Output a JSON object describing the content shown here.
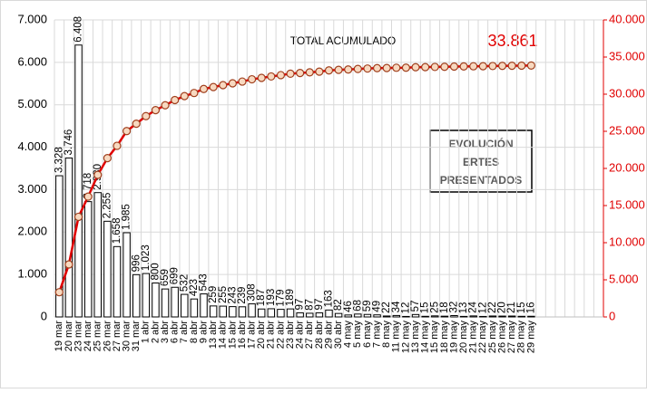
{
  "chart_data": {
    "type": "bar",
    "title": "TOTAL ACUMULADO",
    "total_label": "33.861",
    "box_text": [
      "EVOLUCIÓN",
      "ERTES",
      "PRESENTADOS"
    ],
    "categories": [
      "19 mar",
      "20 mar",
      "23 mar",
      "24 mar",
      "25 mar",
      "26 mar",
      "27 mar",
      "30 mar",
      "31 mar",
      "1 abr",
      "2 abr",
      "3 abr",
      "6 abr",
      "7 abr",
      "8 abr",
      "9 abr",
      "13 abr",
      "14 abr",
      "15 abr",
      "16 abr",
      "17 abr",
      "20 abr",
      "21 abr",
      "22 abr",
      "23 abr",
      "24 abr",
      "27 abr",
      "28 abr",
      "29 abr",
      "30 abr",
      "4 may",
      "5 may",
      "6 may",
      "7 may",
      "8 may",
      "11 may",
      "12 may",
      "13 may",
      "14 may",
      "15 may",
      "18 may",
      "19 may",
      "20 may",
      "21 may",
      "22 may",
      "25 may",
      "26 may",
      "27 may",
      "28 may",
      "29 may"
    ],
    "series": [
      {
        "type": "bar",
        "color": "#ffffff",
        "values": [
          3328,
          3746,
          6408,
          2718,
          2930,
          2255,
          1658,
          1985,
          996,
          1023,
          800,
          659,
          699,
          532,
          423,
          543,
          259,
          255,
          243,
          239,
          308,
          187,
          193,
          179,
          189,
          97,
          87,
          97,
          163,
          82,
          46,
          68,
          59,
          49,
          22,
          34,
          12,
          57,
          15,
          25,
          18,
          32,
          13,
          24,
          12,
          22,
          20,
          21,
          15,
          16
        ],
        "value_labels": [
          "3.328",
          "3.746",
          "6.408",
          "2.718",
          "2.930",
          "2.255",
          "1.658",
          "1.985",
          "996",
          "1.023",
          "800",
          "659",
          "699",
          "532",
          "423",
          "543",
          "259",
          "255",
          "243",
          "239",
          "308",
          "187",
          "193",
          "179",
          "189",
          "97",
          "87",
          "97",
          "163",
          "82",
          "46",
          "68",
          "59",
          "49",
          "22",
          "34",
          "12",
          "57",
          "15",
          "25",
          "18",
          "32",
          "13",
          "24",
          "12",
          "22",
          "20",
          "21",
          "15",
          "16"
        ]
      },
      {
        "type": "line",
        "axis": "y2",
        "color": "#e00000",
        "values": [
          3328,
          7074,
          13482,
          16200,
          19130,
          21385,
          23043,
          25028,
          26024,
          27047,
          27847,
          28506,
          29205,
          29737,
          30160,
          30703,
          30962,
          31217,
          31460,
          31699,
          32007,
          32194,
          32387,
          32566,
          32755,
          32852,
          32939,
          33036,
          33199,
          33281,
          33327,
          33395,
          33454,
          33503,
          33525,
          33559,
          33571,
          33628,
          33643,
          33668,
          33686,
          33718,
          33731,
          33755,
          33767,
          33789,
          33809,
          33830,
          33845,
          33861
        ]
      }
    ],
    "ylim": [
      0,
      7000
    ],
    "yticks": [
      0,
      {
        "value": 1000,
        "label": "1.000"
      },
      {
        "value": 2000,
        "label": "2.000"
      },
      {
        "value": 3000,
        "label": "3.000"
      },
      {
        "value": 4000,
        "label": "4.000"
      },
      {
        "value": 5000,
        "label": "5.000"
      },
      {
        "value": 6000,
        "label": "6.000"
      },
      {
        "value": 7000,
        "label": "7.000"
      }
    ],
    "y2lim": [
      0,
      40000
    ],
    "y2ticks": [
      0,
      {
        "value": 5000,
        "label": "5.000"
      },
      {
        "value": 10000,
        "label": "10.000"
      },
      {
        "value": 15000,
        "label": "15.000"
      },
      {
        "value": 20000,
        "label": "20.000"
      },
      {
        "value": 25000,
        "label": "25.000"
      },
      {
        "value": 30000,
        "label": "30.000"
      },
      {
        "value": 35000,
        "label": "35.000"
      },
      {
        "value": 40000,
        "label": "40.000"
      }
    ],
    "grid": true
  }
}
